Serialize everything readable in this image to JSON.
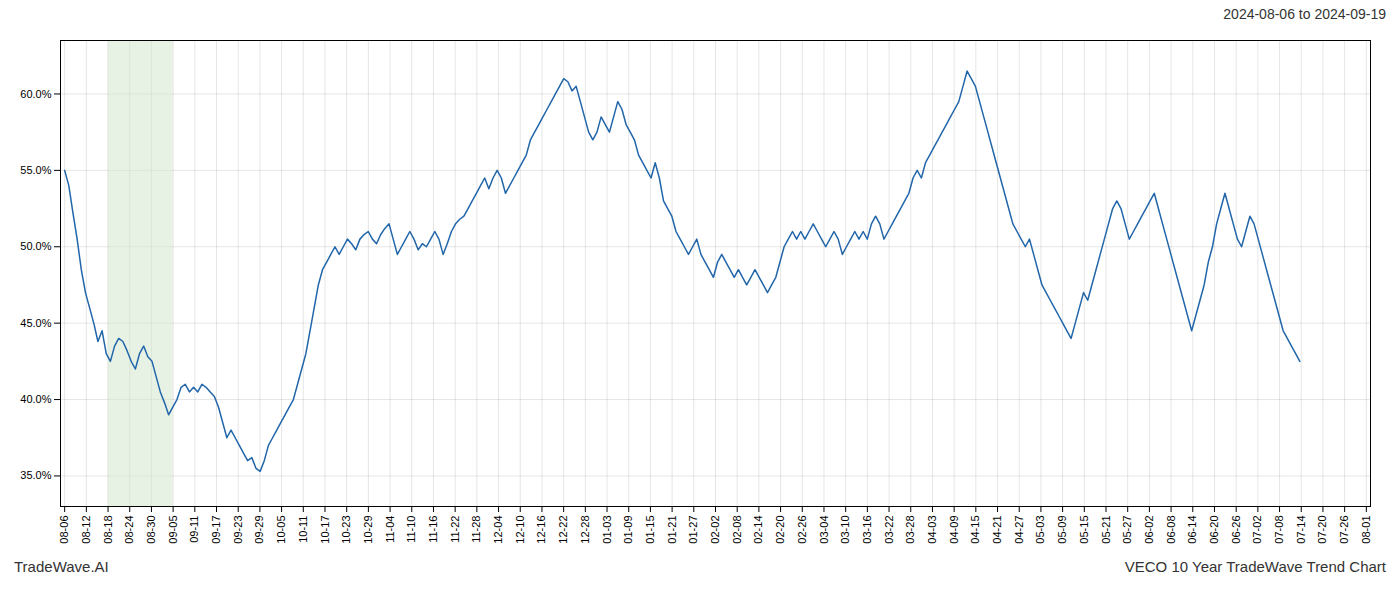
{
  "chart_data": {
    "type": "line",
    "title": "2024-08-06 to 2024-09-19",
    "footer_left": "TradeWave.AI",
    "footer_right": "VECO 10 Year TradeWave Trend Chart",
    "color": "#2266aa",
    "grid": true,
    "shade": {
      "from": "08-18",
      "to": "09-05",
      "color": "#d4e8d0"
    },
    "xlim": [
      -1,
      314
    ],
    "xticks": [
      {
        "value": 0,
        "label": "08-06"
      },
      {
        "value": 5.216667,
        "label": "08-12"
      },
      {
        "value": 10.433333,
        "label": "08-18"
      },
      {
        "value": 15.65,
        "label": "08-24"
      },
      {
        "value": 20.866667,
        "label": "08-30"
      },
      {
        "value": 26.083333,
        "label": "09-05"
      },
      {
        "value": 31.3,
        "label": "09-11"
      },
      {
        "value": 36.516667,
        "label": "09-17"
      },
      {
        "value": 41.733333,
        "label": "09-23"
      },
      {
        "value": 46.95,
        "label": "09-29"
      },
      {
        "value": 52.166667,
        "label": "10-05"
      },
      {
        "value": 57.383333,
        "label": "10-11"
      },
      {
        "value": 62.6,
        "label": "10-17"
      },
      {
        "value": 67.816667,
        "label": "10-23"
      },
      {
        "value": 73.033333,
        "label": "10-29"
      },
      {
        "value": 78.25,
        "label": "11-04"
      },
      {
        "value": 83.466667,
        "label": "11-10"
      },
      {
        "value": 88.683333,
        "label": "11-16"
      },
      {
        "value": 93.9,
        "label": "11-22"
      },
      {
        "value": 99.116667,
        "label": "11-28"
      },
      {
        "value": 104.333333,
        "label": "12-04"
      },
      {
        "value": 109.55,
        "label": "12-10"
      },
      {
        "value": 114.766667,
        "label": "12-16"
      },
      {
        "value": 119.983333,
        "label": "12-22"
      },
      {
        "value": 125.2,
        "label": "12-28"
      },
      {
        "value": 130.416667,
        "label": "01-03"
      },
      {
        "value": 135.633333,
        "label": "01-09"
      },
      {
        "value": 140.85,
        "label": "01-15"
      },
      {
        "value": 146.066667,
        "label": "01-21"
      },
      {
        "value": 151.283333,
        "label": "01-27"
      },
      {
        "value": 156.5,
        "label": "02-02"
      },
      {
        "value": 161.716667,
        "label": "02-08"
      },
      {
        "value": 166.933333,
        "label": "02-14"
      },
      {
        "value": 172.15,
        "label": "02-20"
      },
      {
        "value": 177.366667,
        "label": "02-26"
      },
      {
        "value": 182.583333,
        "label": "03-04"
      },
      {
        "value": 187.8,
        "label": "03-10"
      },
      {
        "value": 193.016667,
        "label": "03-16"
      },
      {
        "value": 198.233333,
        "label": "03-22"
      },
      {
        "value": 203.45,
        "label": "03-28"
      },
      {
        "value": 208.666667,
        "label": "04-03"
      },
      {
        "value": 213.883333,
        "label": "04-09"
      },
      {
        "value": 219.1,
        "label": "04-15"
      },
      {
        "value": 224.316667,
        "label": "04-21"
      },
      {
        "value": 229.533333,
        "label": "04-27"
      },
      {
        "value": 234.75,
        "label": "05-03"
      },
      {
        "value": 239.966667,
        "label": "05-09"
      },
      {
        "value": 245.183333,
        "label": "05-15"
      },
      {
        "value": 250.4,
        "label": "05-21"
      },
      {
        "value": 255.616667,
        "label": "05-27"
      },
      {
        "value": 260.833333,
        "label": "06-02"
      },
      {
        "value": 266.05,
        "label": "06-08"
      },
      {
        "value": 271.266667,
        "label": "06-14"
      },
      {
        "value": 276.483333,
        "label": "06-20"
      },
      {
        "value": 281.7,
        "label": "06-26"
      },
      {
        "value": 286.916667,
        "label": "07-02"
      },
      {
        "value": 292.133333,
        "label": "07-08"
      },
      {
        "value": 297.35,
        "label": "07-14"
      },
      {
        "value": 302.566667,
        "label": "07-20"
      },
      {
        "value": 307.783333,
        "label": "07-26"
      },
      {
        "value": 313,
        "label": "08-01"
      }
    ],
    "ylim": [
      33.0,
      63.5
    ],
    "yticks": [
      {
        "value": 35.0,
        "label": "35.0%"
      },
      {
        "value": 40.0,
        "label": "40.0%"
      },
      {
        "value": 45.0,
        "label": "45.0%"
      },
      {
        "value": 50.0,
        "label": "50.0%"
      },
      {
        "value": 55.0,
        "label": "55.0%"
      },
      {
        "value": 60.0,
        "label": "60.0%"
      }
    ],
    "values": [
      55.0,
      54.0,
      52.2,
      50.5,
      48.5,
      47.0,
      46.0,
      45.0,
      43.8,
      44.5,
      43.0,
      42.5,
      43.5,
      44.0,
      43.8,
      43.2,
      42.5,
      42.0,
      43.0,
      43.5,
      42.8,
      42.5,
      41.5,
      40.5,
      39.8,
      39.0,
      39.5,
      40.0,
      40.8,
      41.0,
      40.5,
      40.8,
      40.5,
      41.0,
      40.8,
      40.5,
      40.2,
      39.5,
      38.5,
      37.5,
      38.0,
      37.5,
      37.0,
      36.5,
      36.0,
      36.2,
      35.5,
      35.3,
      36.0,
      37.0,
      37.5,
      38.0,
      38.5,
      39.0,
      39.5,
      40.0,
      41.0,
      42.0,
      43.0,
      44.5,
      46.0,
      47.5,
      48.5,
      49.0,
      49.5,
      50.0,
      49.5,
      50.0,
      50.5,
      50.2,
      49.8,
      50.5,
      50.8,
      51.0,
      50.5,
      50.2,
      50.8,
      51.2,
      51.5,
      50.5,
      49.5,
      50.0,
      50.5,
      51.0,
      50.5,
      49.8,
      50.2,
      50.0,
      50.5,
      51.0,
      50.5,
      49.5,
      50.2,
      51.0,
      51.5,
      51.8,
      52.0,
      52.5,
      53.0,
      53.5,
      54.0,
      54.5,
      53.8,
      54.5,
      55.0,
      54.5,
      53.5,
      54.0,
      54.5,
      55.0,
      55.5,
      56.0,
      57.0,
      57.5,
      58.0,
      58.5,
      59.0,
      59.5,
      60.0,
      60.5,
      61.0,
      60.8,
      60.2,
      60.5,
      59.5,
      58.5,
      57.5,
      57.0,
      57.5,
      58.5,
      58.0,
      57.5,
      58.5,
      59.5,
      59.0,
      58.0,
      57.5,
      57.0,
      56.0,
      55.5,
      55.0,
      54.5,
      55.5,
      54.5,
      53.0,
      52.5,
      52.0,
      51.0,
      50.5,
      50.0,
      49.5,
      50.0,
      50.5,
      49.5,
      49.0,
      48.5,
      48.0,
      49.0,
      49.5,
      49.0,
      48.5,
      48.0,
      48.5,
      48.0,
      47.5,
      48.0,
      48.5,
      48.0,
      47.5,
      47.0,
      47.5,
      48.0,
      49.0,
      50.0,
      50.5,
      51.0,
      50.5,
      51.0,
      50.5,
      51.0,
      51.5,
      51.0,
      50.5,
      50.0,
      50.5,
      51.0,
      50.5,
      49.5,
      50.0,
      50.5,
      51.0,
      50.5,
      51.0,
      50.5,
      51.5,
      52.0,
      51.5,
      50.5,
      51.0,
      51.5,
      52.0,
      52.5,
      53.0,
      53.5,
      54.5,
      55.0,
      54.5,
      55.5,
      56.0,
      56.5,
      57.0,
      57.5,
      58.0,
      58.5,
      59.0,
      59.5,
      60.5,
      61.5,
      61.0,
      60.5,
      59.5,
      58.5,
      57.5,
      56.5,
      55.5,
      54.5,
      53.5,
      52.5,
      51.5,
      51.0,
      50.5,
      50.0,
      50.5,
      49.5,
      48.5,
      47.5,
      47.0,
      46.5,
      46.0,
      45.5,
      45.0,
      44.5,
      44.0,
      45.0,
      46.0,
      47.0,
      46.5,
      47.5,
      48.5,
      49.5,
      50.5,
      51.5,
      52.5,
      53.0,
      52.5,
      51.5,
      50.5,
      51.0,
      51.5,
      52.0,
      52.5,
      53.0,
      53.5,
      52.5,
      51.5,
      50.5,
      49.5,
      48.5,
      47.5,
      46.5,
      45.5,
      44.5,
      45.5,
      46.5,
      47.5,
      49.0,
      50.0,
      51.5,
      52.5,
      53.5,
      52.5,
      51.5,
      50.5,
      50.0,
      51.0,
      52.0,
      51.5,
      50.5,
      49.5,
      48.5,
      47.5,
      46.5,
      45.5,
      44.5,
      44.0,
      43.5,
      43.0,
      42.5
    ]
  }
}
